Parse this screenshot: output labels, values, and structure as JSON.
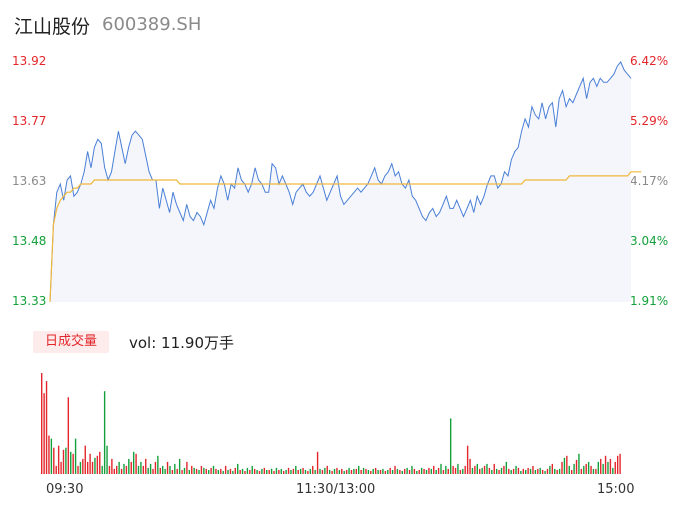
{
  "header": {
    "name": "江山股份",
    "code": "600389.SH"
  },
  "price_axis": {
    "left": [
      {
        "label": "13.92",
        "color": "red"
      },
      {
        "label": "13.77",
        "color": "red"
      },
      {
        "label": "13.63",
        "color": "gray"
      },
      {
        "label": "13.48",
        "color": "green"
      },
      {
        "label": "13.33",
        "color": "green"
      }
    ],
    "right": [
      {
        "label": "6.42%",
        "color": "red"
      },
      {
        "label": "5.29%",
        "color": "red"
      },
      {
        "label": "4.17%",
        "color": "gray"
      },
      {
        "label": "3.04%",
        "color": "green"
      },
      {
        "label": "1.91%",
        "color": "green"
      }
    ]
  },
  "volume": {
    "tab_label": "日成交量",
    "summary": "vol: 11.90万手"
  },
  "x_axis": [
    "09:30",
    "11:30/13:00",
    "15:00"
  ],
  "colors": {
    "up": "#e3262b",
    "down": "#13a03b",
    "price_line": "#4a7fd6",
    "avg_line": "#f0b73b",
    "area": "#f4f6fb"
  },
  "chart_data": [
    {
      "type": "line",
      "x_range": [
        0,
        240
      ],
      "ylim": [
        13.33,
        13.92
      ],
      "series": [
        {
          "values": [
            13.33,
            13.52,
            13.6,
            13.62,
            13.58,
            13.63,
            13.64,
            13.59,
            13.6,
            13.62,
            13.65,
            13.7,
            13.66,
            13.71,
            13.73,
            13.72,
            13.66,
            13.63,
            13.65,
            13.7,
            13.75,
            13.71,
            13.67,
            13.71,
            13.74,
            13.75,
            13.74,
            13.73,
            13.69,
            13.65,
            13.63,
            13.63,
            13.56,
            13.61,
            13.58,
            13.55,
            13.6,
            13.57,
            13.55,
            13.53,
            13.57,
            13.54,
            13.53,
            13.55,
            13.54,
            13.52,
            13.55,
            13.58,
            13.56,
            13.61,
            13.64,
            13.62,
            13.58,
            13.62,
            13.61,
            13.66,
            13.63,
            13.62,
            13.6,
            13.62,
            13.66,
            13.63,
            13.62,
            13.6,
            13.6,
            13.67,
            13.66,
            13.62,
            13.64,
            13.62,
            13.6,
            13.57,
            13.6,
            13.61,
            13.62,
            13.6,
            13.59,
            13.6,
            13.62,
            13.64,
            13.61,
            13.58,
            13.6,
            13.62,
            13.64,
            13.59,
            13.57,
            13.58,
            13.59,
            13.6,
            13.61,
            13.6,
            13.61,
            13.62,
            13.64,
            13.66,
            13.63,
            13.62,
            13.64,
            13.65,
            13.67,
            13.64,
            13.65,
            13.62,
            13.61,
            13.63,
            13.59,
            13.58,
            13.56,
            13.54,
            13.53,
            13.55,
            13.56,
            13.54,
            13.55,
            13.57,
            13.59,
            13.56,
            13.56,
            13.58,
            13.56,
            13.54,
            13.56,
            13.58,
            13.55,
            13.59,
            13.57,
            13.59,
            13.62,
            13.64,
            13.64,
            13.61,
            13.62,
            13.65,
            13.64,
            13.68,
            13.7,
            13.71,
            13.75,
            13.78,
            13.76,
            13.81,
            13.79,
            13.78,
            13.82,
            13.78,
            13.81,
            13.82,
            13.76,
            13.83,
            13.85,
            13.81,
            13.83,
            13.82,
            13.84,
            13.86,
            13.88,
            13.83,
            13.87,
            13.88,
            13.86,
            13.88,
            13.87,
            13.87,
            13.88,
            13.89,
            13.91,
            13.92,
            13.9,
            13.89,
            13.88
          ]
        },
        {
          "values": [
            13.33,
            13.52,
            13.56,
            13.58,
            13.59,
            13.6,
            13.6,
            13.61,
            13.61,
            13.62,
            13.62,
            13.62,
            13.62,
            13.63,
            13.63,
            13.63,
            13.63,
            13.63,
            13.63,
            13.63,
            13.63,
            13.63,
            13.63,
            13.63,
            13.63,
            13.63,
            13.63,
            13.63,
            13.63,
            13.63,
            13.63,
            13.63,
            13.63,
            13.63,
            13.63,
            13.63,
            13.63,
            13.63,
            13.62,
            13.62,
            13.62,
            13.62,
            13.62,
            13.62,
            13.62,
            13.62,
            13.62,
            13.62,
            13.62,
            13.62,
            13.62,
            13.62,
            13.62,
            13.62,
            13.62,
            13.62,
            13.62,
            13.62,
            13.62,
            13.62,
            13.62,
            13.62,
            13.62,
            13.62,
            13.62,
            13.62,
            13.62,
            13.62,
            13.62,
            13.62,
            13.62,
            13.62,
            13.62,
            13.62,
            13.62,
            13.62,
            13.62,
            13.62,
            13.62,
            13.62,
            13.62,
            13.62,
            13.62,
            13.62,
            13.62,
            13.62,
            13.62,
            13.62,
            13.62,
            13.62,
            13.62,
            13.62,
            13.62,
            13.62,
            13.62,
            13.62,
            13.62,
            13.62,
            13.62,
            13.62,
            13.62,
            13.62,
            13.62,
            13.62,
            13.62,
            13.62,
            13.62,
            13.62,
            13.62,
            13.62,
            13.62,
            13.62,
            13.62,
            13.62,
            13.62,
            13.62,
            13.62,
            13.62,
            13.62,
            13.62,
            13.62,
            13.62,
            13.62,
            13.62,
            13.62,
            13.62,
            13.62,
            13.62,
            13.62,
            13.62,
            13.62,
            13.62,
            13.62,
            13.62,
            13.62,
            13.62,
            13.62,
            13.62,
            13.62,
            13.63,
            13.63,
            13.63,
            13.63,
            13.63,
            13.63,
            13.63,
            13.63,
            13.63,
            13.63,
            13.63,
            13.63,
            13.63,
            13.64,
            13.64,
            13.64,
            13.64,
            13.64,
            13.64,
            13.64,
            13.64,
            13.64,
            13.64,
            13.64,
            13.64,
            13.64,
            13.64,
            13.64,
            13.64,
            13.64,
            13.64,
            13.65,
            13.65,
            13.65,
            13.65
          ]
        }
      ]
    },
    {
      "type": "bar",
      "x_range": [
        0,
        240
      ],
      "values": [
        100,
        80,
        92,
        38,
        35,
        26,
        8,
        28,
        12,
        24,
        26,
        76,
        22,
        20,
        35,
        8,
        12,
        15,
        28,
        12,
        20,
        12,
        16,
        18,
        22,
        8,
        82,
        28,
        8,
        15,
        5,
        8,
        12,
        5,
        10,
        8,
        15,
        12,
        22,
        20,
        8,
        12,
        8,
        15,
        6,
        10,
        5,
        12,
        18,
        6,
        8,
        5,
        12,
        8,
        4,
        10,
        5,
        15,
        4,
        6,
        12,
        4,
        8,
        6,
        5,
        4,
        8,
        6,
        5,
        4,
        6,
        8,
        5,
        4,
        5,
        3,
        8,
        4,
        5,
        3,
        6,
        10,
        4,
        5,
        3,
        6,
        4,
        8,
        5,
        4,
        3,
        5,
        6,
        4,
        4,
        5,
        3,
        6,
        4,
        5,
        3,
        4,
        6,
        4,
        5,
        8,
        4,
        5,
        6,
        4,
        3,
        5,
        8,
        4,
        22,
        5,
        4,
        6,
        8,
        4,
        3,
        5,
        6,
        4,
        5,
        3,
        4,
        6,
        4,
        5,
        5,
        8,
        4,
        6,
        5,
        4,
        3,
        5,
        6,
        4,
        4,
        5,
        3,
        4,
        6,
        4,
        8,
        5,
        4,
        3,
        5,
        6,
        4,
        8,
        5,
        3,
        4,
        6,
        5,
        4,
        6,
        5,
        8,
        4,
        6,
        10,
        4,
        8,
        5,
        55,
        8,
        6,
        10,
        4,
        5,
        8,
        28,
        15,
        6,
        8,
        10,
        5,
        6,
        8,
        10,
        6,
        4,
        10,
        5,
        4,
        6,
        8,
        12,
        5,
        4,
        5,
        8,
        6,
        3,
        5,
        4,
        6,
        5,
        8,
        4,
        5,
        6,
        4,
        3,
        5,
        8,
        10,
        5,
        4,
        5,
        12,
        16,
        18,
        8,
        4,
        10,
        14,
        20,
        5,
        8,
        10,
        12,
        8,
        5,
        5,
        12,
        15,
        10,
        18,
        12,
        15,
        6,
        12,
        18,
        20
      ],
      "colors": [
        "up",
        "up",
        "up",
        "up",
        "down",
        "up",
        "up",
        "up",
        "up",
        "up",
        "down",
        "up",
        "down",
        "up",
        "down",
        "up",
        "down",
        "up",
        "up",
        "up",
        "up",
        "up",
        "down",
        "up",
        "up",
        "down",
        "down",
        "down",
        "up",
        "up",
        "up",
        "up",
        "down",
        "up",
        "down",
        "up",
        "down",
        "up",
        "down",
        "up",
        "down",
        "down",
        "up",
        "up",
        "down",
        "down",
        "up",
        "up",
        "down",
        "up",
        "down",
        "down",
        "up",
        "down",
        "up",
        "down",
        "up",
        "down",
        "up",
        "down",
        "up",
        "down",
        "up",
        "down",
        "up",
        "down",
        "up",
        "down",
        "up",
        "down",
        "up",
        "down",
        "up",
        "down",
        "up",
        "down",
        "up",
        "down",
        "up",
        "down",
        "up",
        "down",
        "up",
        "down",
        "up",
        "down",
        "up",
        "down",
        "up",
        "down",
        "up",
        "down",
        "up",
        "down",
        "up",
        "down",
        "up",
        "down",
        "up",
        "down",
        "up",
        "down",
        "up",
        "down",
        "up",
        "down",
        "up",
        "down",
        "up",
        "down",
        "up",
        "down",
        "up",
        "down",
        "up",
        "down",
        "up",
        "down",
        "up",
        "down",
        "up",
        "down",
        "up",
        "down",
        "up",
        "down",
        "up",
        "down",
        "up",
        "down",
        "up",
        "down",
        "up",
        "down",
        "up",
        "down",
        "up",
        "down",
        "up",
        "down",
        "up",
        "down",
        "up",
        "down",
        "up",
        "down",
        "up",
        "down",
        "up",
        "down",
        "up",
        "down",
        "up",
        "down",
        "up",
        "down",
        "up",
        "down",
        "up",
        "down",
        "up",
        "down",
        "up",
        "down",
        "up",
        "down",
        "up",
        "down",
        "up",
        "down",
        "up",
        "up",
        "down",
        "up",
        "down",
        "up",
        "up",
        "up",
        "down",
        "up",
        "down",
        "up",
        "down",
        "up",
        "down",
        "up",
        "down",
        "up",
        "down",
        "up",
        "down",
        "up",
        "down",
        "up",
        "down",
        "up",
        "down",
        "up",
        "down",
        "up",
        "down",
        "up",
        "down",
        "up",
        "down",
        "up",
        "down",
        "up",
        "down",
        "up",
        "down",
        "up",
        "down",
        "up",
        "down",
        "up",
        "down",
        "up",
        "down",
        "up",
        "down",
        "up",
        "down",
        "up",
        "down",
        "up",
        "down",
        "up",
        "down",
        "up",
        "down",
        "up",
        "down",
        "up",
        "down",
        "up",
        "down",
        "up",
        "up",
        "up",
        "down",
        "up",
        "up",
        "down",
        "up",
        "up"
      ]
    }
  ]
}
